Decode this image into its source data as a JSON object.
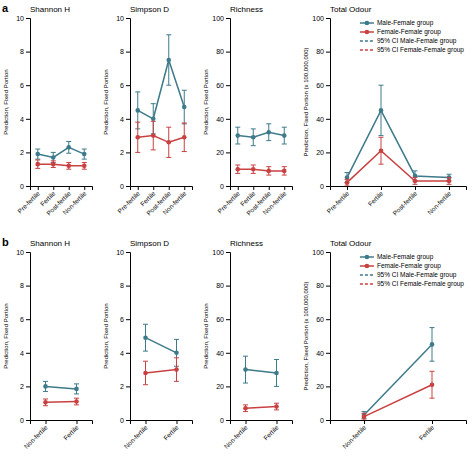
{
  "chart_data": [
    {
      "type": "line",
      "title": "Shannon H",
      "y_label": "Prediction, Fixed Portion",
      "annotations": [
        "a"
      ],
      "categories": [
        "Pre-fertile",
        "Fertile",
        "Post-fertile",
        "Non-fertile"
      ],
      "ylim": [
        0,
        10
      ],
      "yticks": [
        0,
        2,
        4,
        6,
        8,
        10
      ],
      "grid": false,
      "series": [
        {
          "color": "#3d7a8a",
          "marker": "circle",
          "line_style": "solid",
          "values": [
            1.9,
            1.7,
            2.3,
            1.9
          ],
          "errors": [
            0.3,
            0.3,
            0.35,
            0.3
          ]
        },
        {
          "color": "#c94040",
          "marker": "circle",
          "line_style": "solid",
          "values": [
            1.3,
            1.3,
            1.2,
            1.2
          ],
          "errors": [
            0.25,
            0.2,
            0.2,
            0.2
          ]
        }
      ]
    },
    {
      "type": "line",
      "title": "Simpson D",
      "y_label": "Prediction, Fixed Portion",
      "categories": [
        "Pre-fertile",
        "Fertile",
        "Post-fertile",
        "Non-fertile"
      ],
      "ylim": [
        0,
        10
      ],
      "yticks": [
        0,
        2,
        4,
        6,
        8,
        10
      ],
      "grid": false,
      "series": [
        {
          "color": "#3d7a8a",
          "marker": "circle",
          "line_style": "solid",
          "values": [
            4.5,
            4.0,
            7.5,
            4.7
          ],
          "errors": [
            1.1,
            0.9,
            1.5,
            1.0
          ]
        },
        {
          "color": "#c94040",
          "marker": "circle",
          "line_style": "solid",
          "values": [
            2.9,
            3.0,
            2.6,
            2.9
          ],
          "errors": [
            0.9,
            0.85,
            0.9,
            0.85
          ]
        }
      ]
    },
    {
      "type": "line",
      "title": "Richness",
      "y_label": "Prediction, Fixed Portion",
      "categories": [
        "Pre-fertile",
        "Fertile",
        "Post-fertile",
        "Non-fertile"
      ],
      "ylim": [
        0,
        100
      ],
      "yticks": [
        0,
        20,
        40,
        60,
        80,
        100
      ],
      "grid": false,
      "series": [
        {
          "color": "#3d7a8a",
          "marker": "circle",
          "line_style": "solid",
          "values": [
            30,
            29,
            32,
            30
          ],
          "errors": [
            5,
            5,
            5,
            5
          ]
        },
        {
          "color": "#c94040",
          "marker": "circle",
          "line_style": "solid",
          "values": [
            10,
            10,
            9,
            9
          ],
          "errors": [
            2.5,
            2.5,
            2.5,
            2.5
          ]
        }
      ]
    },
    {
      "type": "line",
      "title": "Total Odour",
      "y_label": "Prediction, Fixed Portion (x 100,000,000)",
      "categories": [
        "Pre-fertile",
        "Fertile",
        "Post-fertile",
        "Non-fertile"
      ],
      "ylim": [
        0,
        100
      ],
      "yticks": [
        0,
        20,
        40,
        60,
        80,
        100
      ],
      "grid": false,
      "legend": "upper right",
      "series": [
        {
          "name": "Male-Female group",
          "color": "#3d7a8a",
          "marker": "circle",
          "line_style": "solid",
          "values": [
            5,
            45,
            6,
            5
          ],
          "errors": [
            3,
            15,
            3,
            2
          ]
        },
        {
          "name": "Female-Female group",
          "color": "#c94040",
          "marker": "circle",
          "line_style": "solid",
          "values": [
            2,
            21,
            3,
            3
          ],
          "errors": [
            2,
            8,
            2,
            2
          ]
        },
        {
          "name": "95% CI Male-Female group",
          "color": "#3d7a8a",
          "line_style": "dashed",
          "values": [
            null,
            null,
            null,
            null
          ]
        },
        {
          "name": "95% CI Female-Female group",
          "color": "#c94040",
          "line_style": "dashed",
          "values": [
            null,
            null,
            null,
            null
          ]
        }
      ]
    },
    {
      "type": "line",
      "title": "Shannon H",
      "y_label": "Prediction, Fixed Portion",
      "annotations": [
        "b"
      ],
      "categories": [
        "Non-fertile",
        "Fertile"
      ],
      "ylim": [
        0,
        10
      ],
      "yticks": [
        0,
        2,
        4,
        6,
        8,
        10
      ],
      "grid": false,
      "series": [
        {
          "color": "#3d7a8a",
          "marker": "circle",
          "line_style": "solid",
          "values": [
            2.0,
            1.85
          ],
          "errors": [
            0.3,
            0.3
          ]
        },
        {
          "color": "#c94040",
          "marker": "circle",
          "line_style": "solid",
          "values": [
            1.05,
            1.1
          ],
          "errors": [
            0.2,
            0.2
          ]
        }
      ]
    },
    {
      "type": "line",
      "title": "Simpson D",
      "y_label": "Prediction, Fixed Portion",
      "categories": [
        "Non-fertile",
        "Fertile"
      ],
      "ylim": [
        0,
        10
      ],
      "yticks": [
        0,
        2,
        4,
        6,
        8,
        10
      ],
      "grid": false,
      "series": [
        {
          "color": "#3d7a8a",
          "marker": "circle",
          "line_style": "solid",
          "values": [
            4.9,
            4.0
          ],
          "errors": [
            0.8,
            0.8
          ]
        },
        {
          "color": "#c94040",
          "marker": "circle",
          "line_style": "solid",
          "values": [
            2.8,
            3.0
          ],
          "errors": [
            0.7,
            0.7
          ]
        }
      ]
    },
    {
      "type": "line",
      "title": "Richness",
      "y_label": "Prediction, Fixed Portion",
      "categories": [
        "Non-fertile",
        "Fertile"
      ],
      "ylim": [
        0,
        100
      ],
      "yticks": [
        0,
        20,
        40,
        60,
        80,
        100
      ],
      "grid": false,
      "series": [
        {
          "color": "#3d7a8a",
          "marker": "circle",
          "line_style": "solid",
          "values": [
            30,
            28
          ],
          "errors": [
            8,
            8
          ]
        },
        {
          "color": "#c94040",
          "marker": "circle",
          "line_style": "solid",
          "values": [
            7,
            8
          ],
          "errors": [
            2,
            2
          ]
        }
      ]
    },
    {
      "type": "line",
      "title": "Total Odour",
      "y_label": "Prediction, Fixed Portion (x 100,000,000)",
      "categories": [
        "Non-fertile",
        "Fertile"
      ],
      "ylim": [
        0,
        100
      ],
      "yticks": [
        0,
        20,
        40,
        60,
        80,
        100
      ],
      "grid": false,
      "legend": "upper right",
      "series": [
        {
          "name": "Male-Female group",
          "color": "#3d7a8a",
          "marker": "circle",
          "line_style": "solid",
          "values": [
            3,
            45
          ],
          "errors": [
            2,
            10
          ]
        },
        {
          "name": "Female-Female group",
          "color": "#c94040",
          "marker": "circle",
          "line_style": "solid",
          "values": [
            2,
            21
          ],
          "errors": [
            2,
            8
          ]
        },
        {
          "name": "95% CI Male-Female group",
          "color": "#3d7a8a",
          "line_style": "dashed",
          "values": [
            null,
            null
          ]
        },
        {
          "name": "95% CI Female-Female group",
          "color": "#c94040",
          "line_style": "dashed",
          "values": [
            null,
            null
          ]
        }
      ]
    }
  ]
}
